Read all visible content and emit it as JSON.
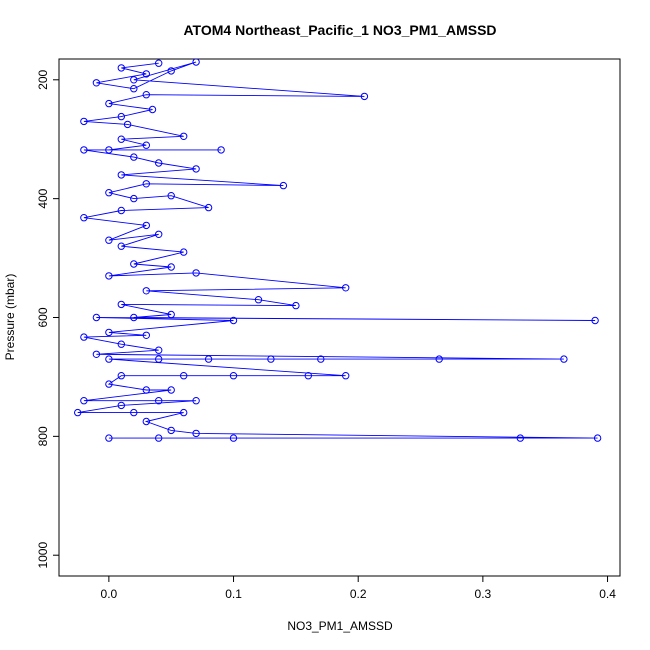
{
  "chart_data": {
    "type": "line",
    "title": "ATOM4 Northeast_Pacific_1 NO3_PM1_AMSSD",
    "xlabel": "NO3_PM1_AMSSD",
    "ylabel": "Pressure (mbar)",
    "xlim": [
      -0.04,
      0.41
    ],
    "ylim": [
      1035,
      165
    ],
    "y_reversed": true,
    "grid": false,
    "markers": "open-circle",
    "x_ticks": [
      0.0,
      0.1,
      0.2,
      0.3,
      0.4
    ],
    "x_tick_labels": [
      "0.0",
      "0.1",
      "0.2",
      "0.3",
      "0.4"
    ],
    "y_ticks": [
      200,
      400,
      600,
      800,
      1000
    ],
    "y_tick_labels": [
      "200",
      "400",
      "600",
      "800",
      "1000"
    ],
    "colors": {
      "series": "#0000ff"
    },
    "series": [
      {
        "points": [
          [
            0.04,
            172
          ],
          [
            0.01,
            180
          ],
          [
            0.03,
            190
          ],
          [
            -0.01,
            205
          ],
          [
            0.02,
            215
          ],
          [
            0.05,
            185
          ],
          [
            0.07,
            170
          ],
          [
            0.02,
            200
          ],
          [
            0.205,
            228
          ],
          [
            0.03,
            225
          ],
          [
            0.0,
            240
          ],
          [
            0.035,
            250
          ],
          [
            0.01,
            262
          ],
          [
            -0.02,
            270
          ],
          [
            0.015,
            275
          ],
          [
            0.06,
            295
          ],
          [
            0.01,
            300
          ],
          [
            0.03,
            310
          ],
          [
            0.0,
            318
          ],
          [
            0.09,
            318
          ],
          [
            -0.02,
            318
          ],
          [
            0.02,
            330
          ],
          [
            0.04,
            340
          ],
          [
            0.07,
            350
          ],
          [
            0.01,
            360
          ],
          [
            0.14,
            378
          ],
          [
            0.03,
            375
          ],
          [
            0.0,
            390
          ],
          [
            0.02,
            400
          ],
          [
            0.05,
            395
          ],
          [
            0.08,
            415
          ],
          [
            0.01,
            420
          ],
          [
            -0.02,
            432
          ],
          [
            0.03,
            445
          ],
          [
            0.0,
            470
          ],
          [
            0.04,
            460
          ],
          [
            0.01,
            480
          ],
          [
            0.06,
            490
          ],
          [
            0.02,
            510
          ],
          [
            0.05,
            515
          ],
          [
            0.0,
            530
          ],
          [
            0.07,
            525
          ],
          [
            0.19,
            550
          ],
          [
            0.03,
            555
          ],
          [
            0.12,
            570
          ],
          [
            0.15,
            580
          ],
          [
            0.01,
            578
          ],
          [
            0.05,
            595
          ],
          [
            0.02,
            600
          ],
          [
            0.39,
            605
          ],
          [
            -0.01,
            600
          ],
          [
            0.1,
            605
          ],
          [
            0.0,
            625
          ],
          [
            0.03,
            630
          ],
          [
            -0.02,
            633
          ],
          [
            0.01,
            645
          ],
          [
            0.04,
            655
          ],
          [
            -0.01,
            662
          ],
          [
            0.365,
            670
          ],
          [
            0.265,
            670
          ],
          [
            0.17,
            670
          ],
          [
            0.13,
            670
          ],
          [
            0.08,
            670
          ],
          [
            0.04,
            670
          ],
          [
            0.0,
            670
          ],
          [
            0.19,
            698
          ],
          [
            0.16,
            698
          ],
          [
            0.1,
            698
          ],
          [
            0.06,
            698
          ],
          [
            0.01,
            698
          ],
          [
            0.0,
            712
          ],
          [
            0.03,
            722
          ],
          [
            0.05,
            722
          ],
          [
            -0.02,
            740
          ],
          [
            0.04,
            740
          ],
          [
            0.07,
            740
          ],
          [
            0.01,
            748
          ],
          [
            -0.025,
            760
          ],
          [
            0.02,
            760
          ],
          [
            0.06,
            760
          ],
          [
            0.03,
            775
          ],
          [
            0.05,
            790
          ],
          [
            0.07,
            795
          ],
          [
            0.392,
            803
          ],
          [
            0.33,
            803
          ],
          [
            0.1,
            803
          ],
          [
            0.04,
            803
          ],
          [
            0.0,
            803
          ]
        ]
      }
    ]
  }
}
